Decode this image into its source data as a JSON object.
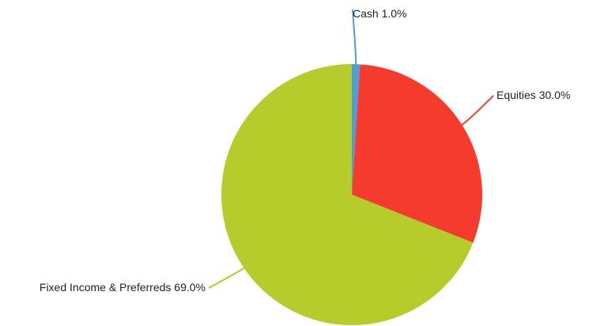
{
  "chart_data": {
    "type": "pie",
    "categories": [
      "Cash",
      "Equities",
      "Fixed Income & Preferreds"
    ],
    "values": [
      1.0,
      30.0,
      69.0
    ],
    "labels": [
      "Cash 1.0%",
      "Equities 30.0%",
      "Fixed Income & Preferreds 69.0%"
    ],
    "colors": [
      "#4a9fd8",
      "#f53b2e",
      "#b5cc2a"
    ],
    "start": "12 o'clock",
    "direction": "clockwise"
  }
}
